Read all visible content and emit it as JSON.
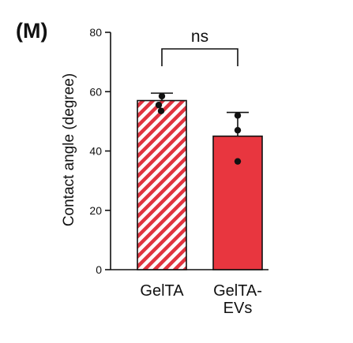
{
  "chart_data": {
    "type": "bar",
    "panel_label": "(M)",
    "categories": [
      "GelTA",
      "GelTA-EVs"
    ],
    "category_label_lines": [
      [
        "GelTA"
      ],
      [
        "GelTA-",
        "EVs"
      ]
    ],
    "values": [
      57,
      45
    ],
    "error_upper": [
      59.5,
      53
    ],
    "points": [
      [
        58.5,
        55.5,
        53.5
      ],
      [
        52,
        47,
        36.5
      ]
    ],
    "ylabel": "Contact angle (degree)",
    "ylim": [
      0,
      80
    ],
    "yticks": [
      0,
      20,
      40,
      60,
      80
    ],
    "significance": "ns",
    "styles": [
      "hatched",
      "solid"
    ],
    "colors": {
      "bar_red": "#e8363f",
      "hatch_red": "#e0333f",
      "axis": "#111111"
    }
  }
}
